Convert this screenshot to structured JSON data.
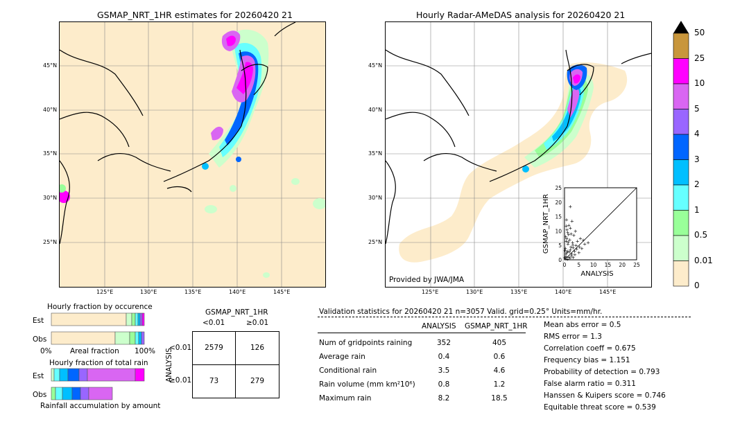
{
  "left_map": {
    "title": "GSMAP_NRT_1HR estimates for 20260420 21",
    "lat_ticks": [
      "45°N",
      "40°N",
      "35°N",
      "30°N",
      "25°N"
    ],
    "lon_ticks": [
      "125°E",
      "130°E",
      "135°E",
      "140°E",
      "145°E"
    ]
  },
  "right_map": {
    "title": "Hourly Radar-AMeDAS analysis for 20260420 21",
    "lat_ticks": [
      "45°N",
      "40°N",
      "35°N",
      "30°N",
      "25°N"
    ],
    "lon_ticks": [
      "125°E",
      "130°E",
      "135°E",
      "140°E",
      "145°E"
    ],
    "credit": "Provided by JWA/JMA"
  },
  "colorbar": {
    "labels": [
      "50",
      "25",
      "10",
      "5",
      "4",
      "3",
      "2",
      "1",
      "0.5",
      "0.01",
      "0"
    ],
    "colors": [
      "#c8963c",
      "#ff00ff",
      "#d966f2",
      "#9966ff",
      "#0066ff",
      "#00bfff",
      "#66ffff",
      "#99ff99",
      "#ccffcc",
      "#fdeccb"
    ]
  },
  "chart_data": [
    {
      "type": "scatter",
      "xlabel": "ANALYSIS",
      "ylabel": "GSMAP_NRT_1HR",
      "xlim": [
        0,
        25
      ],
      "ylim": [
        0,
        25
      ],
      "ticks": [
        "0",
        "5",
        "10",
        "15",
        "20",
        "25"
      ],
      "points": [
        [
          0.2,
          0.5
        ],
        [
          0.5,
          1.2
        ],
        [
          1.0,
          0.3
        ],
        [
          0.8,
          2.5
        ],
        [
          1.5,
          1.0
        ],
        [
          2.0,
          3.5
        ],
        [
          0.3,
          4.0
        ],
        [
          1.2,
          5.5
        ],
        [
          2.5,
          2.0
        ],
        [
          3.0,
          0.8
        ],
        [
          0.6,
          6.5
        ],
        [
          1.8,
          7.0
        ],
        [
          2.2,
          4.5
        ],
        [
          3.5,
          3.0
        ],
        [
          4.0,
          5.0
        ],
        [
          0.4,
          8.0
        ],
        [
          1.1,
          9.5
        ],
        [
          2.8,
          6.0
        ],
        [
          3.2,
          8.5
        ],
        [
          5.0,
          2.5
        ],
        [
          0.9,
          10.5
        ],
        [
          2.0,
          11.0
        ],
        [
          4.5,
          6.5
        ],
        [
          6.0,
          4.0
        ],
        [
          1.5,
          12.0
        ],
        [
          3.8,
          10.0
        ],
        [
          0.7,
          14.0
        ],
        [
          2.6,
          13.5
        ],
        [
          5.5,
          7.5
        ],
        [
          7.0,
          5.5
        ],
        [
          8.2,
          6.0
        ],
        [
          2.0,
          18.5
        ],
        [
          1.0,
          3.0
        ],
        [
          0.5,
          2.0
        ],
        [
          1.7,
          2.8
        ],
        [
          2.4,
          1.5
        ],
        [
          0.2,
          3.3
        ],
        [
          3.0,
          4.2
        ],
        [
          1.3,
          6.2
        ],
        [
          0.8,
          7.5
        ],
        [
          4.2,
          3.8
        ],
        [
          6.5,
          6.8
        ],
        [
          5.2,
          4.5
        ],
        [
          0.1,
          1.0
        ],
        [
          1.9,
          0.6
        ],
        [
          2.9,
          5.2
        ],
        [
          3.6,
          1.8
        ],
        [
          1.4,
          8.8
        ],
        [
          2.3,
          9.0
        ],
        [
          0.6,
          11.8
        ]
      ]
    },
    {
      "type": "bar",
      "title": "Hourly fraction by occurence",
      "categories": [
        "Est",
        "Obs"
      ],
      "xlabel": "Areal fraction",
      "ticks": [
        "0%",
        "100%"
      ]
    },
    {
      "type": "bar",
      "title": "Hourly fraction of total rain",
      "categories": [
        "Est",
        "Obs"
      ],
      "xlabel": "Rainfall accumulation by amount"
    }
  ],
  "contingency": {
    "title": "GSMAP_NRT_1HR",
    "col_headers": [
      "<0.01",
      "≥0.01"
    ],
    "row_headers": [
      "<0.01",
      "≥0.01"
    ],
    "ylabel": "ANALYSIS",
    "cells": [
      [
        "2579",
        "126"
      ],
      [
        "73",
        "279"
      ]
    ]
  },
  "validation": {
    "header": "Validation statistics for 20260420 21  n=3057 Valid. grid=0.25° Units=mm/hr.",
    "col_headers": [
      "ANALYSIS",
      "GSMAP_NRT_1HR"
    ],
    "rows": [
      {
        "label": "Num of gridpoints raining",
        "a": "352",
        "g": "405"
      },
      {
        "label": "Average rain",
        "a": "0.4",
        "g": "0.6"
      },
      {
        "label": "Conditional rain",
        "a": "3.5",
        "g": "4.6"
      },
      {
        "label": "Rain volume (mm km²10⁶)",
        "a": "0.8",
        "g": "1.2"
      },
      {
        "label": "Maximum rain",
        "a": "8.2",
        "g": "18.5"
      }
    ],
    "scores": [
      "Mean abs error =    0.5",
      "RMS error =    1.3",
      "Correlation coeff =  0.675",
      "Frequency bias =  1.151",
      "Probability of detection =  0.793",
      "False alarm ratio =  0.311",
      "Hanssen & Kuipers score =  0.746",
      "Equitable threat score =  0.539"
    ]
  }
}
